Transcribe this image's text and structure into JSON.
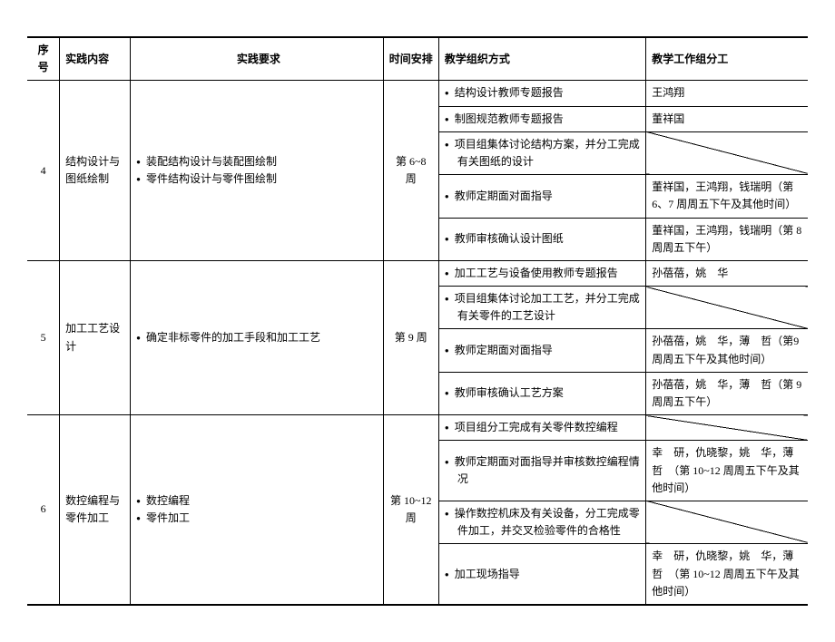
{
  "headers": {
    "seq": "序号",
    "content": "实践内容",
    "req": "实践要求",
    "time": "时间安排",
    "org": "教学组织方式",
    "assign": "教学工作组分工"
  },
  "r4": {
    "seq": "4",
    "content": "结构设计与图纸绘制",
    "req1": "装配结构设计与装配图绘制",
    "req2": "零件结构设计与零件图绘制",
    "time": "第 6~8 周",
    "org1": "结构设计教师专题报告",
    "org2": "制图规范教师专题报告",
    "org3": "项目组集体讨论结构方案，并分工完成有关图纸的设计",
    "org4": "教师定期面对面指导",
    "org5": "教师审核确认设计图纸",
    "a1": "王鸿翔",
    "a2": "董祥国",
    "a4": "董祥国，王鸿翔，钱瑞明（第6、7 周周五下午及其他时间）",
    "a5": "董祥国，王鸿翔，钱瑞明（第 8 周周五下午）"
  },
  "r5": {
    "seq": "5",
    "content": "加工工艺设计",
    "req1": "确定非标零件的加工手段和加工工艺",
    "time": "第 9 周",
    "org1": "加工工艺与设备使用教师专题报告",
    "org2": "项目组集体讨论加工工艺，并分工完成有关零件的工艺设计",
    "org3": "教师定期面对面指导",
    "org4": "教师审核确认工艺方案",
    "a1": "孙蓓蓓，姚　华",
    "a3": "孙蓓蓓，姚　华，薄　哲（第9 周周五下午及其他时间）",
    "a4": "孙蓓蓓，姚　华，薄　哲（第 9 周周五下午）"
  },
  "r6": {
    "seq": "6",
    "content": "数控编程与零件加工",
    "req1": "数控编程",
    "req2": "零件加工",
    "time": "第 10~12周",
    "org1": "项目组分工完成有关零件数控编程",
    "org2": "教师定期面对面指导并审核数控编程情况",
    "org3": "操作数控机床及有关设备，分工完成零件加工，并交叉检验零件的合格性",
    "org4": "加工现场指导",
    "a2": "幸　研，仇晓黎，姚　华，薄　哲　（第 10~12 周周五下午及其他时间）",
    "a4": "幸　研，仇晓黎，姚　华，薄　哲　（第 10~12 周周五下午及其他时间）"
  }
}
